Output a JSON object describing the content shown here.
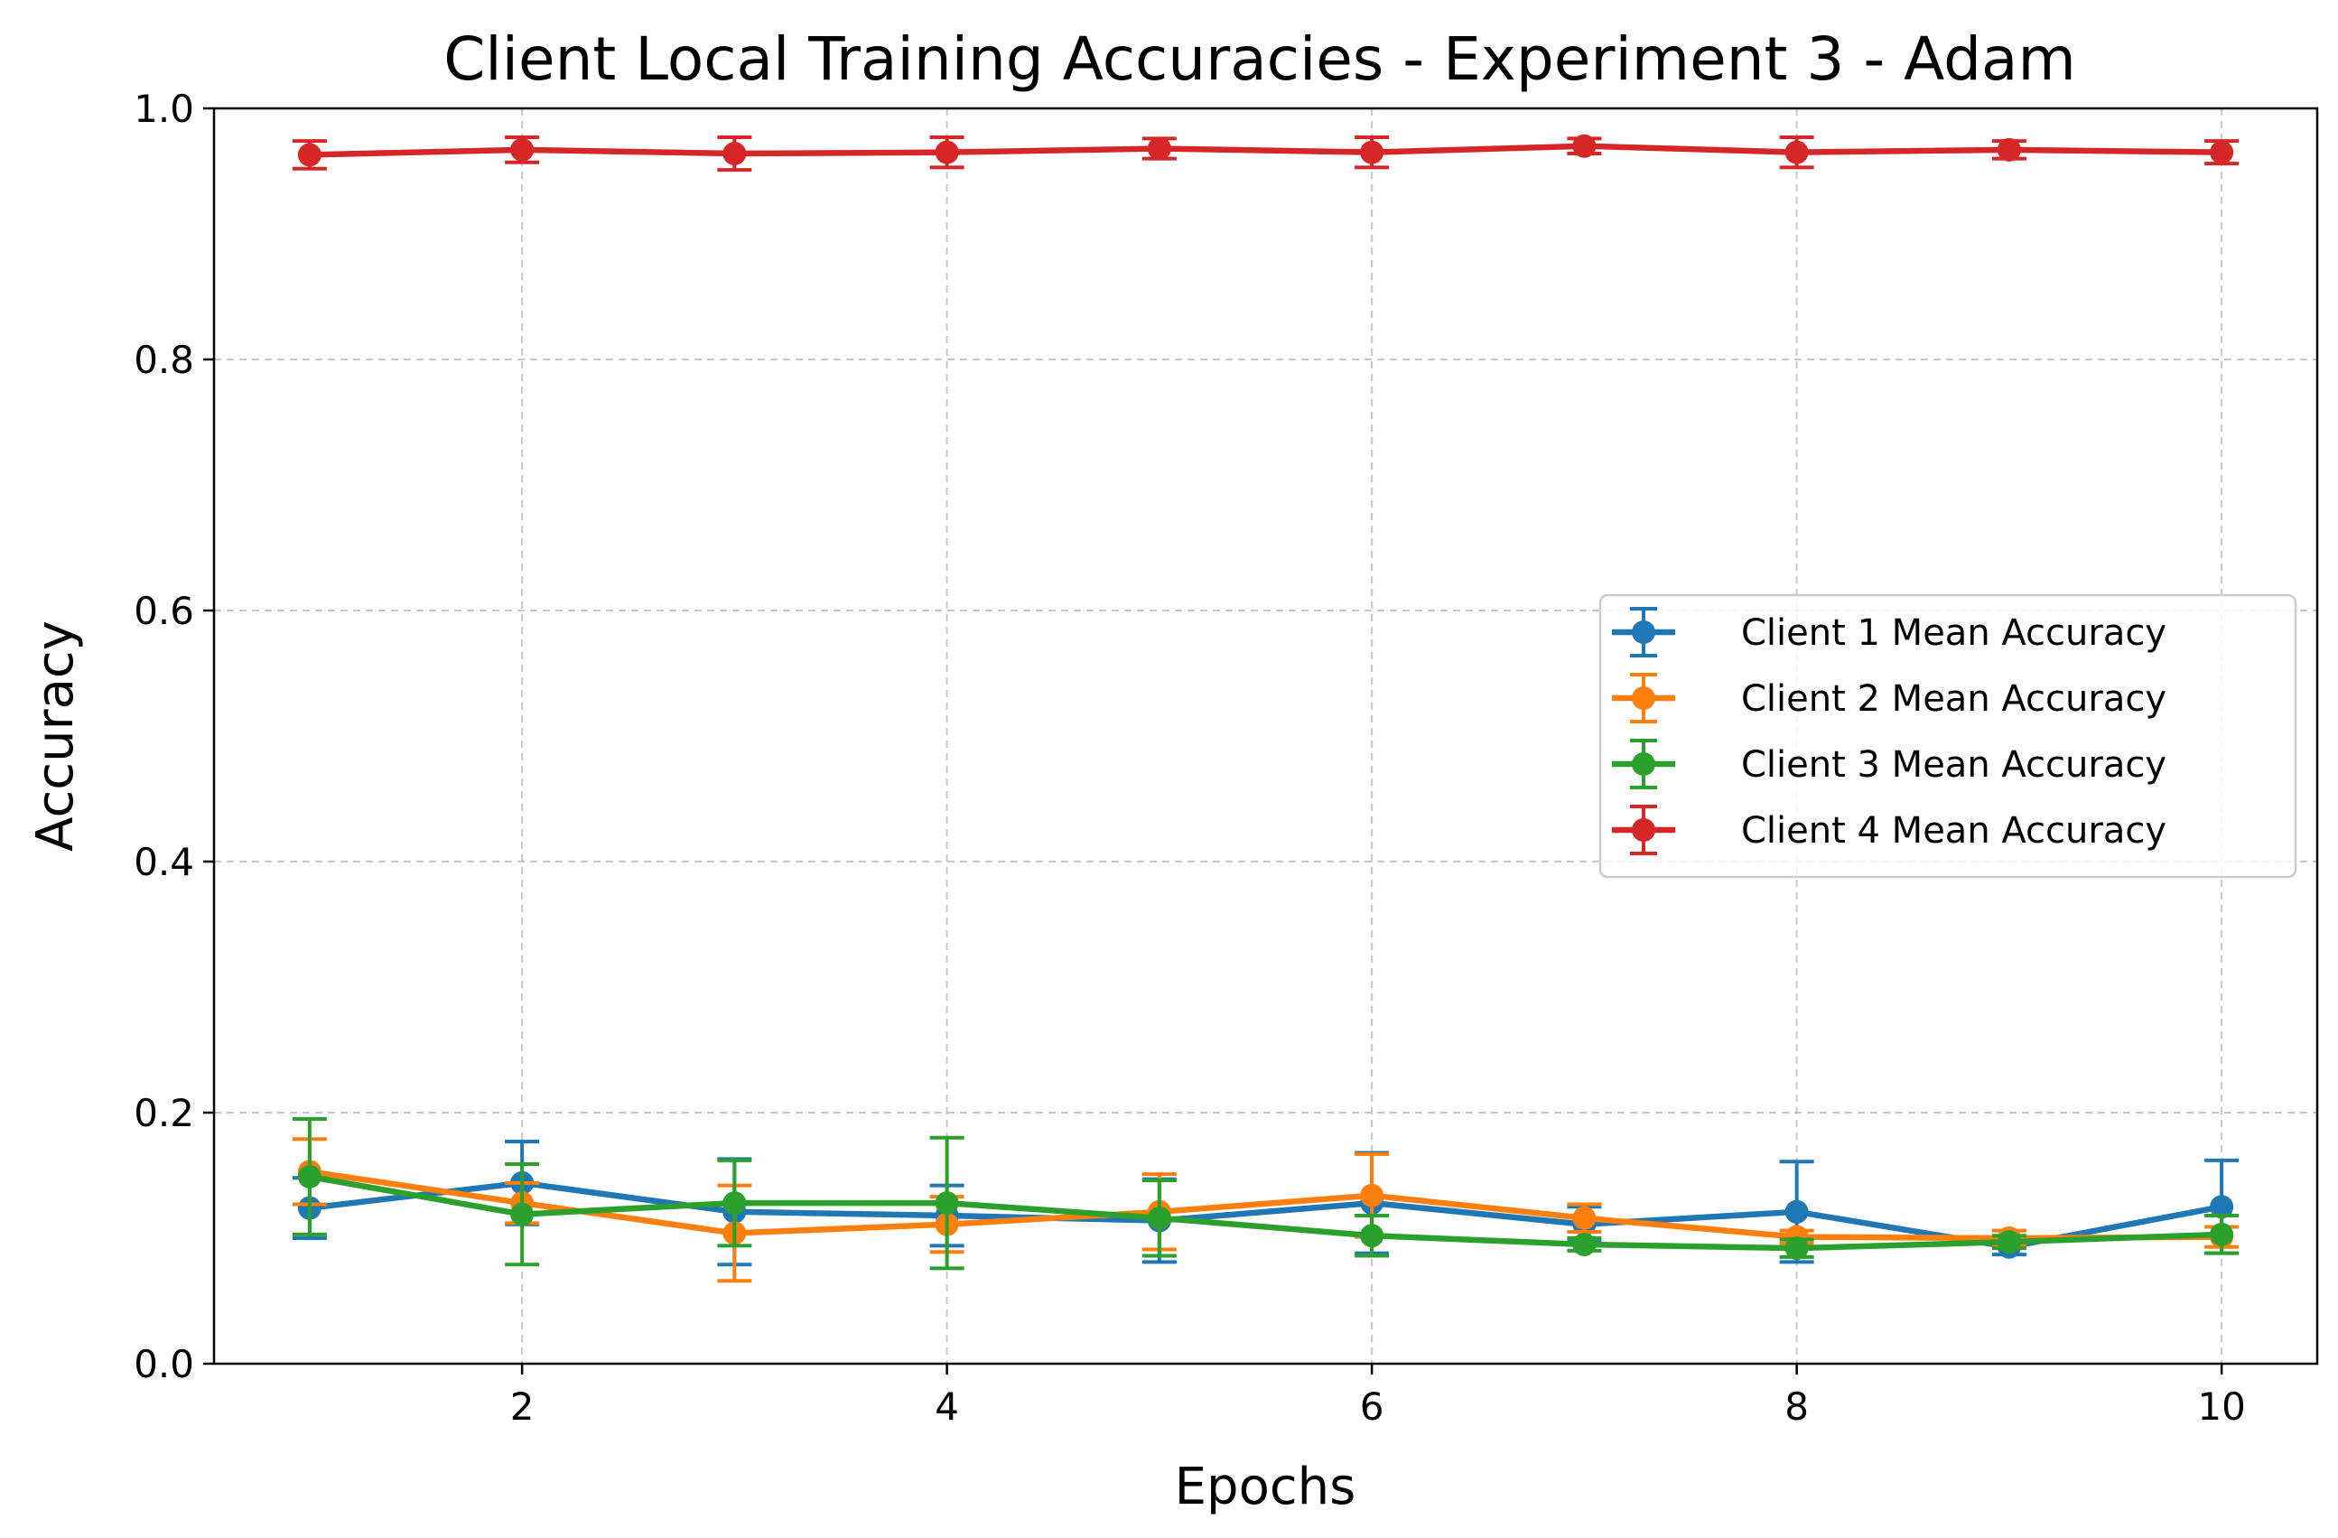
{
  "chart_data": {
    "type": "line",
    "title": "Client Local Training Accuracies - Experiment 3 - Adam",
    "xlabel": "Epochs",
    "ylabel": "Accuracy",
    "xlim": [
      0.55,
      10.45
    ],
    "ylim": [
      0.0,
      1.0
    ],
    "xticks": [
      2,
      4,
      6,
      8,
      10
    ],
    "xtick_labels": [
      "2",
      "4",
      "6",
      "8",
      "10"
    ],
    "yticks": [
      0.0,
      0.2,
      0.4,
      0.6,
      0.8,
      1.0
    ],
    "ytick_labels": [
      "0.0",
      "0.2",
      "0.4",
      "0.6",
      "0.8",
      "1.0"
    ],
    "grid": true,
    "legend_position": "center-right",
    "x": [
      1,
      2,
      3,
      4,
      5,
      6,
      7,
      8,
      9,
      10
    ],
    "series": [
      {
        "name": "Client 1 Mean Accuracy",
        "color": "#1f77b4",
        "values": [
          0.124,
          0.144,
          0.121,
          0.118,
          0.114,
          0.128,
          0.111,
          0.121,
          0.093,
          0.125
        ],
        "errors": [
          0.024,
          0.033,
          0.042,
          0.024,
          0.033,
          0.04,
          0.014,
          0.04,
          0.006,
          0.037
        ]
      },
      {
        "name": "Client 2 Mean Accuracy",
        "color": "#ff7f0e",
        "values": [
          0.153,
          0.128,
          0.104,
          0.111,
          0.121,
          0.134,
          0.116,
          0.101,
          0.1,
          0.101
        ],
        "errors": [
          0.026,
          0.016,
          0.038,
          0.022,
          0.03,
          0.033,
          0.011,
          0.005,
          0.006,
          0.008
        ]
      },
      {
        "name": "Client 3 Mean Accuracy",
        "color": "#2ca02c",
        "values": [
          0.149,
          0.119,
          0.128,
          0.128,
          0.116,
          0.102,
          0.095,
          0.092,
          0.097,
          0.103
        ],
        "errors": [
          0.046,
          0.04,
          0.034,
          0.052,
          0.03,
          0.016,
          0.005,
          0.007,
          0.005,
          0.015
        ]
      },
      {
        "name": "Client 4 Mean Accuracy",
        "color": "#d62728",
        "values": [
          0.963,
          0.967,
          0.964,
          0.965,
          0.968,
          0.965,
          0.97,
          0.965,
          0.967,
          0.965
        ],
        "errors": [
          0.011,
          0.01,
          0.013,
          0.012,
          0.008,
          0.012,
          0.006,
          0.012,
          0.007,
          0.009
        ]
      }
    ]
  }
}
